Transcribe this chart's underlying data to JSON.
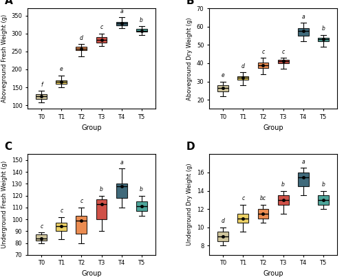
{
  "panels": [
    "A",
    "B",
    "C",
    "D"
  ],
  "groups": [
    "T0",
    "T1",
    "T2",
    "T3",
    "T4",
    "T5"
  ],
  "colors": [
    "#C8BC8C",
    "#E8C84A",
    "#E87832",
    "#C83228",
    "#1E5064",
    "#2E9688"
  ],
  "A": {
    "ylabel": "Aboveground Fresh Weight (g)",
    "ylim": [
      90,
      370
    ],
    "yticks": [
      100,
      150,
      200,
      250,
      300,
      350
    ],
    "letters": [
      "f",
      "e",
      "d",
      "c",
      "a",
      "b"
    ],
    "medians": [
      125,
      165,
      258,
      283,
      328,
      308
    ],
    "q1": [
      118,
      160,
      253,
      275,
      322,
      305
    ],
    "q3": [
      132,
      170,
      263,
      290,
      332,
      313
    ],
    "whislo": [
      108,
      150,
      237,
      265,
      315,
      295
    ],
    "whishi": [
      140,
      183,
      270,
      300,
      345,
      320
    ],
    "means": [
      125,
      165,
      258,
      283,
      328,
      308
    ],
    "fliers_lo": [
      [
        112
      ],
      [
        152
      ],
      [],
      [],
      [],
      [
        302
      ]
    ],
    "fliers_hi": [
      [],
      [],
      [],
      [],
      [],
      []
    ]
  },
  "B": {
    "ylabel": "Aboveground Dry Weight (g)",
    "ylim": [
      15,
      70
    ],
    "yticks": [
      20,
      30,
      40,
      50,
      60,
      70
    ],
    "letters": [
      "e",
      "d",
      "c",
      "c",
      "a",
      "b"
    ],
    "medians": [
      26.5,
      32,
      39,
      41,
      57.5,
      53
    ],
    "q1": [
      24.5,
      31,
      37.5,
      40,
      55,
      52
    ],
    "q3": [
      28,
      33,
      40.5,
      42,
      59,
      54
    ],
    "whislo": [
      22,
      28,
      34,
      37,
      52,
      49
    ],
    "whishi": [
      30,
      35,
      43,
      43,
      62,
      55.5
    ],
    "means": [
      26.5,
      32,
      39,
      41,
      57.5,
      53
    ],
    "fliers_lo": [
      [],
      [],
      [],
      [],
      [],
      []
    ],
    "fliers_hi": [
      [],
      [],
      [],
      [],
      [],
      []
    ]
  },
  "C": {
    "ylabel": "Underground Fresh Weight (g)",
    "ylim": [
      70,
      155
    ],
    "yticks": [
      70,
      80,
      90,
      100,
      110,
      120,
      130,
      140,
      150
    ],
    "letters": [
      "c",
      "c",
      "c",
      "b",
      "a",
      "b"
    ],
    "medians": [
      84,
      94,
      99,
      113,
      128,
      111
    ],
    "q1": [
      82,
      90,
      88,
      100,
      118,
      107
    ],
    "q3": [
      87,
      97,
      103,
      117,
      130,
      115
    ],
    "whislo": [
      80,
      83,
      80,
      90,
      110,
      103
    ],
    "whishi": [
      89,
      102,
      110,
      120,
      143,
      120
    ],
    "means": [
      84,
      94,
      99,
      113,
      128,
      111
    ],
    "fliers_lo": [
      [],
      [],
      [],
      [],
      [],
      []
    ],
    "fliers_hi": [
      [],
      [],
      [],
      [],
      [],
      []
    ]
  },
  "D": {
    "ylabel": "Underground Dry Weight (g)",
    "ylim": [
      7,
      18
    ],
    "yticks": [
      8,
      10,
      12,
      14,
      16
    ],
    "letters": [
      "d",
      "c",
      "bc",
      "b",
      "a",
      "b"
    ],
    "medians": [
      9,
      11,
      11.5,
      13,
      15.5,
      13
    ],
    "q1": [
      8.5,
      10.5,
      11,
      12.5,
      14.5,
      12.5
    ],
    "q3": [
      9.5,
      11.5,
      12,
      13.5,
      16,
      13.5
    ],
    "whislo": [
      8,
      9.5,
      10.5,
      11.5,
      13.5,
      12
    ],
    "whishi": [
      10,
      12.5,
      12.5,
      14,
      16.5,
      14
    ],
    "means": [
      9,
      11,
      11.5,
      13,
      15.5,
      13
    ],
    "fliers_lo": [
      [],
      [],
      [],
      [],
      [],
      []
    ],
    "fliers_hi": [
      [],
      [],
      [],
      [],
      [],
      []
    ]
  }
}
